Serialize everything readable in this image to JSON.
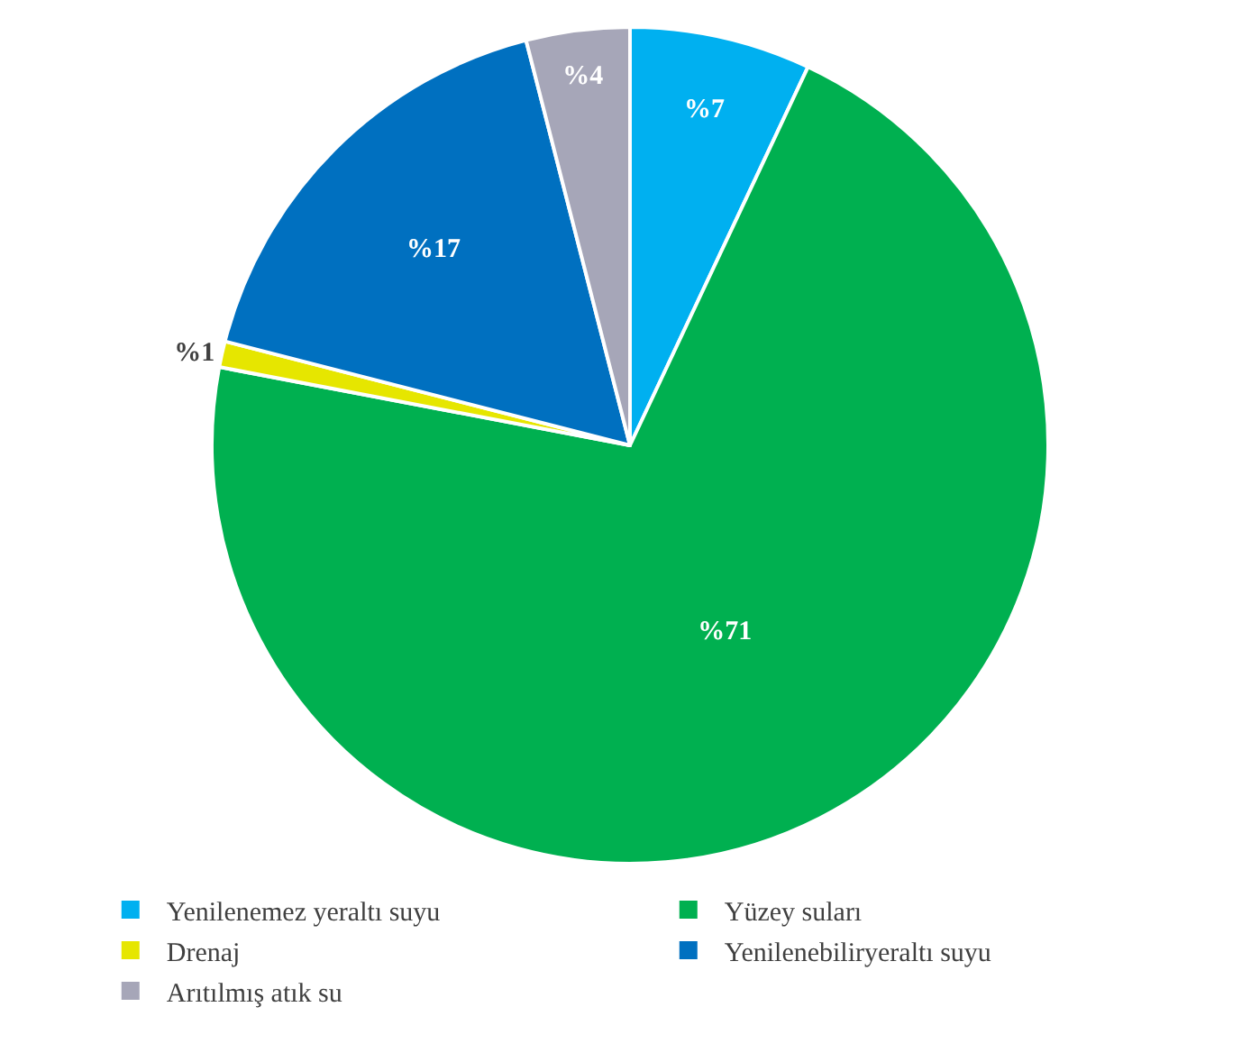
{
  "chart_data": {
    "type": "pie",
    "categories": [
      "Yenilenemez yeraltı suyu",
      "Yüzey suları",
      "Drenaj",
      "Yenilenebiliryeraltı suyu",
      "Arıtılmış atık su"
    ],
    "values": [
      7,
      71,
      1,
      17,
      4
    ],
    "value_labels": [
      "%7",
      "%71",
      "%1",
      "%17",
      "%4"
    ],
    "colors": [
      "#00b0f0",
      "#00b050",
      "#e6e600",
      "#0070c0",
      "#a6a6b8"
    ],
    "legend": "bottom"
  }
}
